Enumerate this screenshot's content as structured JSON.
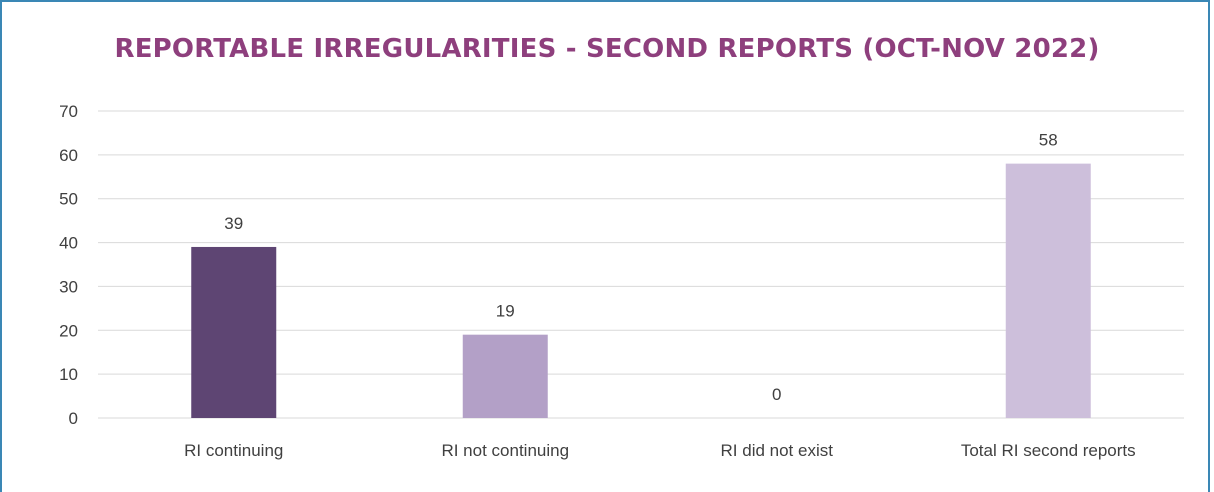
{
  "chart_data": {
    "type": "bar",
    "title": "REPORTABLE IRREGULARITIES - SECOND REPORTS (OCT-NOV 2022)",
    "categories": [
      "RI continuing",
      "RI not continuing",
      "RI did not exist",
      "Total RI second reports"
    ],
    "values": [
      39,
      19,
      0,
      58
    ],
    "data_labels": [
      "39",
      "19",
      "0",
      "58"
    ],
    "bar_colors": [
      "#5e4573",
      "#b3a0c7",
      "#b3a0c7",
      "#cdbfdb"
    ],
    "ylim": [
      0,
      70
    ],
    "yticks": [
      0,
      10,
      20,
      30,
      40,
      50,
      60,
      70
    ],
    "xlabel": "",
    "ylabel": "",
    "grid": true,
    "legend": "none"
  },
  "colors": {
    "title": "#8e3f7d",
    "border": "#3a87b5",
    "gridline": "#d9d9d9",
    "text": "#404040"
  }
}
